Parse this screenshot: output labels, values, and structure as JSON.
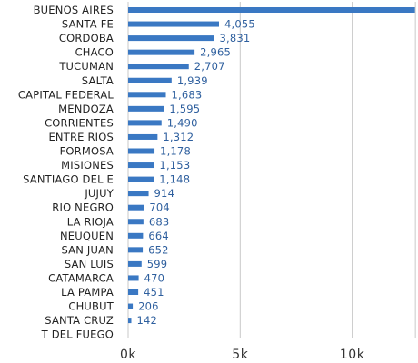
{
  "chart_data": {
    "type": "bar",
    "orientation": "horizontal",
    "categories": [
      "BUENOS AIRES",
      "SANTA FE",
      "CORDOBA",
      "CHACO",
      "TUCUMAN",
      "SALTA",
      "CAPITAL FEDERAL",
      "MENDOZA",
      "CORRIENTES",
      "ENTRE RIOS",
      "FORMOSA",
      "MISIONES",
      "SANTIAGO DEL E",
      "JUJUY",
      "RIO NEGRO",
      "LA RIOJA",
      "NEUQUEN",
      "SAN JUAN",
      "SAN LUIS",
      "CATAMARCA",
      "LA PAMPA",
      "CHUBUT",
      "SANTA CRUZ",
      "T DEL FUEGO"
    ],
    "values": [
      12800,
      4055,
      3831,
      2965,
      2707,
      1939,
      1683,
      1595,
      1490,
      1312,
      1178,
      1153,
      1148,
      914,
      704,
      683,
      664,
      652,
      599,
      470,
      451,
      206,
      142,
      0
    ],
    "value_labels": [
      "",
      "4,055",
      "3,831",
      "2,965",
      "2,707",
      "1,939",
      "1,683",
      "1,595",
      "1,490",
      "1,312",
      "1,178",
      "1,153",
      "1,148",
      "914",
      "704",
      "683",
      "664",
      "652",
      "599",
      "470",
      "451",
      "206",
      "142",
      ""
    ],
    "x_ticks": [
      {
        "value": 0,
        "label": "0k"
      },
      {
        "value": 5000,
        "label": "5k"
      },
      {
        "value": 10000,
        "label": "10k"
      }
    ],
    "xlim": [
      0,
      12800
    ],
    "bar_color": "#3a78c3",
    "grid": true
  }
}
